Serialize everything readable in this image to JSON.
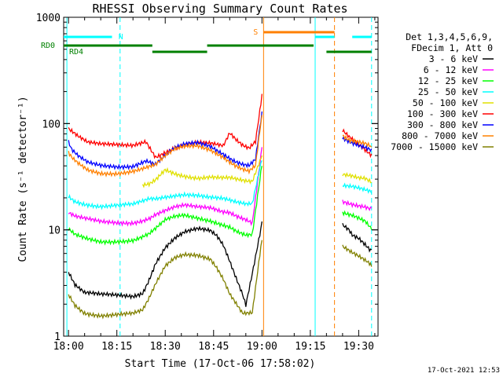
{
  "chart_data": {
    "type": "line",
    "title": "RHESSI Observing Summary Count Rates",
    "xlabel": "Start Time (17-Oct-06 17:58:02)",
    "ylabel": "Count Rate (s⁻¹ detector⁻¹)",
    "y_scale": "log",
    "ylim": [
      1,
      1000
    ],
    "xlim_minutes": [
      -1.5,
      96
    ],
    "x_ticks": [
      "18:00",
      "18:15",
      "18:30",
      "18:45",
      "19:00",
      "19:15",
      "19:30"
    ],
    "y_ticks": [
      "1",
      "10",
      "100",
      "1000"
    ],
    "legend_header": [
      "Det 1,3,4,5,6,9,",
      "FDecim 1, Att 0"
    ],
    "legend_position": "right",
    "timestamp": "17-Oct-2021 12:53",
    "flag_labels": {
      "N": "N",
      "S": "S",
      "RD0": "RD0",
      "RD4": "RD4"
    },
    "x_unit_note": "minutes after 18:00",
    "series": [
      {
        "name": "3 - 6 keV",
        "color": "#000000",
        "x": [
          0,
          2,
          5,
          10,
          15,
          20,
          23,
          25,
          27,
          30,
          33,
          36,
          40,
          44,
          46,
          48,
          50,
          52,
          54,
          55,
          57,
          60,
          80,
          85,
          87,
          88,
          90,
          92,
          94
        ],
        "y": [
          4,
          3,
          2.5,
          2.4,
          2.4,
          2.4,
          2.6,
          3.5,
          5,
          7,
          8.5,
          9.5,
          10,
          9.5,
          8.5,
          7,
          5,
          3.5,
          2.5,
          2,
          4,
          12,
          null,
          11,
          10,
          9,
          8.5,
          7.5,
          6.5
        ]
      },
      {
        "name": "6 - 12 keV",
        "color": "#ff00ff",
        "x": [
          0,
          2,
          5,
          10,
          15,
          20,
          23,
          25,
          27,
          30,
          33,
          36,
          40,
          44,
          48,
          50,
          52,
          55,
          57,
          60,
          80,
          85,
          88,
          90,
          92,
          94
        ],
        "y": [
          14,
          13,
          12.5,
          12,
          12,
          12,
          12.5,
          13,
          14,
          15,
          16,
          16.5,
          16,
          16,
          15,
          15,
          14,
          13,
          12,
          60,
          null,
          19,
          18,
          17.5,
          17,
          16
        ]
      },
      {
        "name": "12 - 25 keV",
        "color": "#00ff00",
        "x": [
          0,
          2,
          5,
          10,
          15,
          20,
          23,
          25,
          27,
          30,
          33,
          36,
          40,
          44,
          48,
          50,
          52,
          55,
          57,
          60,
          80,
          85,
          88,
          90,
          92,
          94
        ],
        "y": [
          10,
          9,
          8.5,
          8,
          8,
          8,
          8.5,
          9,
          10,
          12,
          13,
          13.5,
          13,
          12.5,
          11.5,
          11,
          10,
          9,
          9,
          40,
          null,
          15,
          14,
          13,
          12,
          10
        ]
      },
      {
        "name": "25 - 50 keV",
        "color": "#00ffff",
        "x": [
          0,
          2,
          5,
          10,
          15,
          20,
          23,
          25,
          27,
          30,
          33,
          36,
          40,
          44,
          48,
          50,
          52,
          55,
          57,
          60,
          80,
          85,
          88,
          90,
          92,
          94
        ],
        "y": [
          21,
          19,
          18,
          17,
          17,
          17,
          18,
          19,
          19,
          20,
          21,
          22,
          22,
          21,
          20,
          19,
          18,
          17,
          17,
          45,
          null,
          26,
          25,
          24,
          23,
          22
        ]
      },
      {
        "name": "50 - 100 keV",
        "color": "#e0e000",
        "x": [
          0,
          2,
          5,
          10,
          15,
          20,
          23,
          25,
          27,
          30,
          33,
          36,
          40,
          44,
          48,
          50,
          52,
          55,
          57,
          60,
          80,
          85,
          88,
          90,
          92,
          94
        ],
        "y": [
          null,
          null,
          null,
          null,
          null,
          null,
          26,
          27,
          30,
          38,
          35,
          33,
          31,
          31,
          30,
          30,
          29,
          28,
          28,
          50,
          null,
          32,
          31,
          30,
          30,
          28
        ]
      },
      {
        "name": "100 - 300 keV",
        "color": "#ff0000",
        "x": [
          0,
          1,
          3,
          6,
          10,
          15,
          20,
          24,
          27,
          30,
          33,
          36,
          40,
          44,
          48,
          50,
          52,
          54,
          56,
          58,
          60,
          80,
          85,
          87,
          90,
          92,
          94
        ],
        "y": [
          90,
          85,
          75,
          65,
          62,
          62,
          63,
          70,
          50,
          55,
          60,
          63,
          65,
          63,
          60,
          80,
          70,
          63,
          60,
          70,
          190,
          null,
          85,
          75,
          65,
          58,
          52
        ]
      },
      {
        "name": "300 - 800 keV",
        "color": "#0000ff",
        "x": [
          0,
          1,
          3,
          6,
          10,
          15,
          20,
          24,
          27,
          30,
          33,
          36,
          40,
          44,
          48,
          50,
          52,
          54,
          56,
          58,
          60,
          80,
          85,
          87,
          90,
          92,
          94
        ],
        "y": [
          65,
          55,
          48,
          42,
          40,
          40,
          41,
          46,
          42,
          50,
          58,
          62,
          64,
          60,
          52,
          48,
          45,
          43,
          42,
          48,
          130,
          null,
          75,
          70,
          65,
          62,
          58
        ]
      },
      {
        "name": "800 - 7000 keV",
        "color": "#ff8000",
        "x": [
          0,
          1,
          3,
          6,
          10,
          15,
          20,
          24,
          27,
          30,
          33,
          36,
          40,
          44,
          48,
          50,
          52,
          54,
          56,
          58,
          60,
          80,
          85,
          87,
          90,
          92,
          94
        ],
        "y": [
          52,
          47,
          42,
          37,
          35,
          35,
          36,
          38,
          40,
          48,
          56,
          60,
          62,
          58,
          50,
          45,
          41,
          38,
          36,
          40,
          120,
          null,
          80,
          72,
          68,
          65,
          60
        ]
      },
      {
        "name": "7000 - 15000 keV",
        "color": "#808000",
        "x": [
          0,
          2,
          5,
          10,
          15,
          20,
          23,
          25,
          27,
          30,
          33,
          36,
          40,
          44,
          46,
          48,
          50,
          52,
          54,
          57,
          60,
          80,
          85,
          88,
          90,
          92,
          94
        ],
        "y": [
          2.5,
          2,
          1.7,
          1.6,
          1.6,
          1.6,
          1.7,
          2.2,
          3,
          4.5,
          5.5,
          6,
          6,
          5.5,
          4.5,
          3.5,
          2.5,
          2,
          1.6,
          1.6,
          8,
          null,
          7,
          6,
          5.5,
          5,
          4.5
        ]
      }
    ],
    "flags": {
      "N_segments": [
        [
          -1.5,
          16
        ],
        [
          18.5,
          19
        ],
        [
          82,
          94
        ]
      ],
      "S_segments": [
        [
          60,
          78.5
        ]
      ],
      "RD0_segments": [
        [
          -1.5,
          26
        ],
        [
          26,
          26
        ],
        [
          43,
          62
        ],
        [
          62,
          80
        ],
        [
          80,
          94
        ]
      ],
      "RD0_levels": [
        [
          -1.5,
          26
        ],
        [
          43,
          76
        ]
      ],
      "RD4_levels": [
        [
          26,
          43
        ],
        [
          80,
          94
        ]
      ],
      "vlines_cyan_solid": [
        -0.5,
        76.5
      ],
      "vlines_cyan_dashed": [
        16,
        94
      ],
      "vlines_orange_solid": [
        60.5
      ],
      "vlines_orange_dashed": [
        82.5
      ]
    }
  }
}
